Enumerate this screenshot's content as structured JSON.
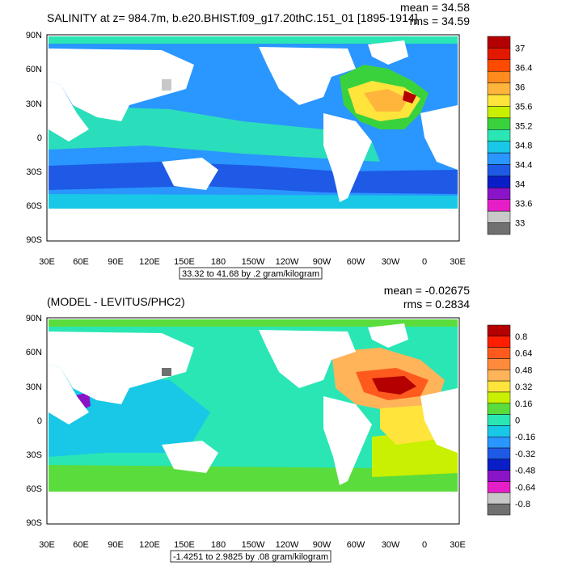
{
  "panels": [
    {
      "title": "SALINITY at z= 984.7m, b.e20.BHIST.f09_g17.20thC.151_01 [1895-1914]",
      "mean": "mean = 34.58",
      "rms": "rms = 34.59",
      "info_box": "33.32 to 41.68 by .2 gram/kilogram",
      "colorbar_labels": [
        "37",
        "36.4",
        "36",
        "35.6",
        "35.2",
        "34.8",
        "34.4",
        "34",
        "33.6",
        "33"
      ],
      "colorbar_colors": [
        "#b40000",
        "#e21800",
        "#ff4b00",
        "#ff8a1e",
        "#ffb53c",
        "#ffe43c",
        "#c8f000",
        "#3ad23c",
        "#2ae6b4",
        "#18c8e6",
        "#2a96ff",
        "#1e5ae6",
        "#0a1ec8",
        "#8a14c8",
        "#e61ec8",
        "#c8c8c8",
        "#707070"
      ]
    },
    {
      "title": "(MODEL - LEVITUS/PHC2)",
      "mean": "mean = -0.02675",
      "rms": "rms = 0.2834",
      "info_box": "-1.4251 to 2.9825 by .08 gram/kilogram",
      "colorbar_labels": [
        "0.8",
        "0.64",
        "0.48",
        "0.32",
        "0.16",
        "0",
        "-0.16",
        "-0.32",
        "-0.48",
        "-0.64",
        "-0.8"
      ],
      "colorbar_colors": [
        "#b40000",
        "#ff1e00",
        "#ff5a1e",
        "#ff8a3c",
        "#ffb45a",
        "#ffe43c",
        "#c8f000",
        "#5adc3c",
        "#2ae6b4",
        "#18c8e6",
        "#2a96ff",
        "#1e5ae6",
        "#0a1ec8",
        "#8a14c8",
        "#e61ec8",
        "#c8c8c8",
        "#707070"
      ]
    }
  ],
  "lat_labels": [
    "90N",
    "60N",
    "30N",
    "0",
    "30S",
    "60S",
    "90S"
  ],
  "lon_labels": [
    "30E",
    "60E",
    "90E",
    "120E",
    "150E",
    "180",
    "150W",
    "120W",
    "90W",
    "60W",
    "30W",
    "0",
    "30E"
  ]
}
